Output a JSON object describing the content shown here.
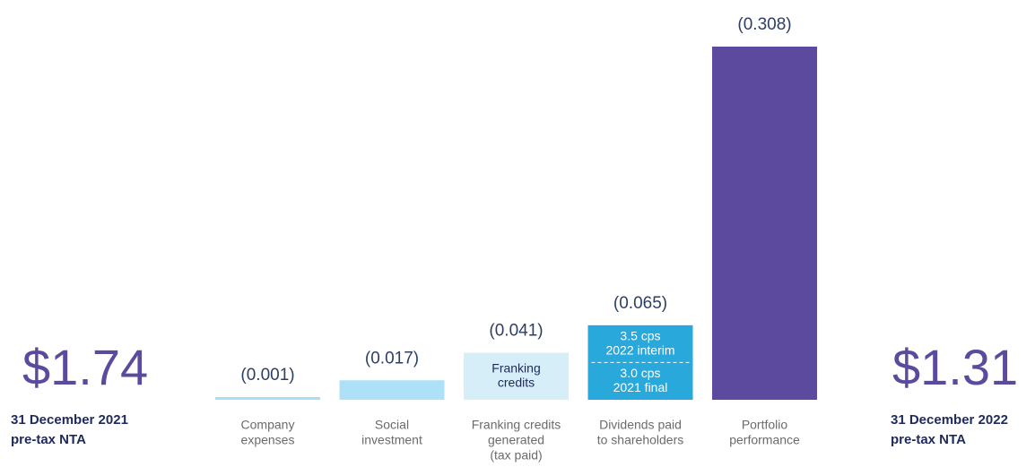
{
  "chart_data": {
    "type": "waterfall",
    "start": {
      "value": 1.74,
      "value_label": "$1.74",
      "caption": [
        "31 December 2021",
        "pre-tax NTA"
      ]
    },
    "end": {
      "value": 1.31,
      "value_label": "$1.31",
      "caption": [
        "31 December 2022",
        "pre-tax NTA"
      ]
    },
    "categories": [
      [
        "Company",
        "expenses"
      ],
      [
        "Social",
        "investment"
      ],
      [
        "Franking credits",
        "generated",
        "(tax paid)"
      ],
      [
        "Dividends paid",
        "to shareholders"
      ],
      [
        "Portfolio",
        "performance"
      ]
    ],
    "values": [
      -0.001,
      -0.017,
      -0.041,
      -0.065,
      -0.308
    ],
    "value_labels": [
      "(0.001)",
      "(0.017)",
      "(0.041)",
      "(0.065)",
      "(0.308)"
    ],
    "colors": [
      "#a9def3",
      "#aee0f7",
      "#d6eef8",
      "#29a8dc",
      "#5b4a9e"
    ],
    "bar_annotations": {
      "2": [
        [
          "Franking",
          "credits"
        ]
      ],
      "3": [
        [
          "3.5 cps",
          "2022 interim"
        ],
        [
          "3.0 cps",
          "2021 final"
        ]
      ]
    }
  }
}
